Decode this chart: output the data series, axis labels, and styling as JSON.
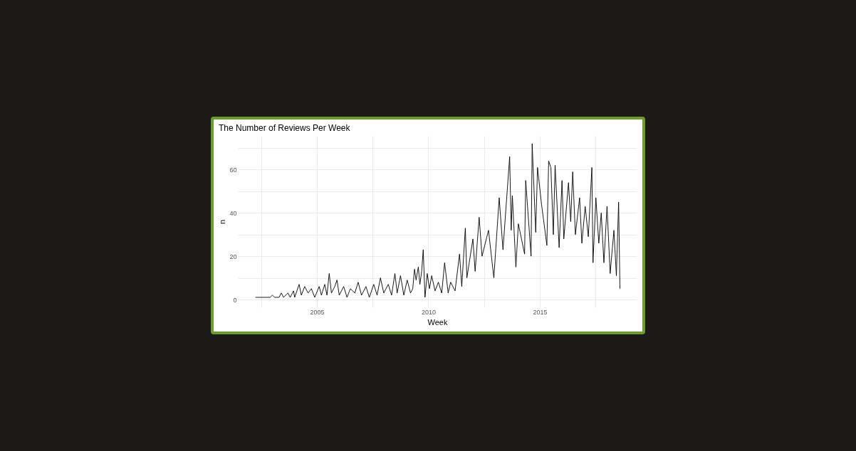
{
  "chart_data": {
    "type": "line",
    "title": "The Number of Reviews Per Week",
    "xlabel": "Week",
    "ylabel": "n",
    "xlim": [
      2001.45,
      2019.35
    ],
    "ylim": [
      -3.6,
      75.6
    ],
    "xticks": [
      {
        "value": 2002.5,
        "label": null
      },
      2005,
      {
        "value": 2007.5,
        "label": null
      },
      2010,
      {
        "value": 2012.5,
        "label": null
      },
      2015,
      {
        "value": 2017.5,
        "label": null
      }
    ],
    "yticks": [
      0,
      {
        "value": 10,
        "label": null
      },
      20,
      {
        "value": 30,
        "label": null
      },
      40,
      {
        "value": 50,
        "label": null
      },
      60,
      {
        "value": 70,
        "label": null
      }
    ],
    "grid": true,
    "line_style": "solid",
    "marker": "none",
    "series": [
      {
        "color": "#000000",
        "x": [
          2002.24,
          2002.9,
          2003.0,
          2003.1,
          2003.3,
          2003.4,
          2003.5,
          2003.7,
          2003.8,
          2003.95,
          2004.0,
          2004.2,
          2004.3,
          2004.45,
          2004.6,
          2004.75,
          2004.9,
          2005.1,
          2005.2,
          2005.35,
          2005.45,
          2005.55,
          2005.65,
          2005.8,
          2005.9,
          2006.0,
          2006.2,
          2006.35,
          2006.5,
          2006.7,
          2006.85,
          2007.0,
          2007.2,
          2007.35,
          2007.55,
          2007.7,
          2007.85,
          2008.0,
          2008.2,
          2008.35,
          2008.5,
          2008.6,
          2008.75,
          2008.9,
          2009.05,
          2009.2,
          2009.3,
          2009.38,
          2009.45,
          2009.55,
          2009.62,
          2009.7,
          2009.77,
          2009.85,
          2009.95,
          2010.05,
          2010.15,
          2010.3,
          2010.45,
          2010.6,
          2010.73,
          2010.89,
          2011.0,
          2011.2,
          2011.4,
          2011.5,
          2011.66,
          2011.73,
          2012.0,
          2012.1,
          2012.28,
          2012.41,
          2012.7,
          2012.94,
          2013.18,
          2013.35,
          2013.65,
          2013.72,
          2013.77,
          2013.93,
          2014.04,
          2014.32,
          2014.37,
          2014.61,
          2014.66,
          2014.82,
          2014.9,
          2015.08,
          2015.32,
          2015.4,
          2015.5,
          2015.61,
          2015.69,
          2015.87,
          2016.0,
          2016.08,
          2016.29,
          2016.39,
          2016.48,
          2016.6,
          2016.79,
          2016.89,
          2017.04,
          2017.18,
          2017.34,
          2017.39,
          2017.52,
          2017.65,
          2017.76,
          2017.88,
          2018.02,
          2018.16,
          2018.33,
          2018.44,
          2018.54,
          2018.6
        ],
        "values": [
          1,
          1,
          2,
          1,
          1,
          3,
          1,
          3,
          1,
          4,
          1,
          7,
          2,
          6,
          3,
          5,
          1,
          6,
          2,
          7,
          2,
          12,
          3,
          6,
          9,
          2,
          6,
          1,
          5,
          3,
          8,
          2,
          6,
          1,
          7,
          2,
          10,
          3,
          7,
          2,
          12,
          3,
          11,
          2,
          9,
          3,
          5,
          14,
          9,
          15,
          7,
          13,
          23,
          1,
          12,
          5,
          11,
          4,
          8,
          3,
          17,
          3,
          8,
          4,
          21,
          6,
          33,
          10,
          28,
          13,
          38,
          20,
          32,
          10,
          47,
          23,
          66,
          32,
          48,
          15,
          35,
          21,
          55,
          20,
          72,
          31,
          61,
          44,
          25,
          64,
          61,
          30,
          62,
          24,
          55,
          28,
          54,
          36,
          59,
          30,
          47,
          26,
          43,
          29,
          61,
          17,
          47,
          26,
          40,
          17,
          43,
          12,
          32,
          11,
          45,
          5
        ]
      }
    ]
  }
}
